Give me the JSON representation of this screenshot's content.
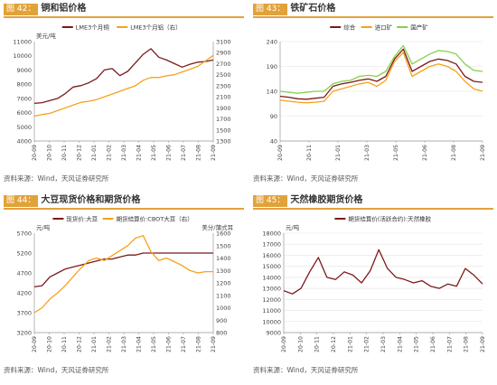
{
  "panels": [
    {
      "tag": "图 42：",
      "title": "铜和铝价格",
      "source": "资料来源：Wind，天风证券研究所"
    },
    {
      "tag": "图 43：",
      "title": "铁矿石价格",
      "source": "资料来源：Wind，天风证券研究所"
    },
    {
      "tag": "图 44：",
      "title": "大豆现货价格和期货价格",
      "source": "资料来源：Wind，天风证券研究所"
    },
    {
      "tag": "图 45：",
      "title": "天然橡胶期货价格",
      "source": "资料来源：Wind，天风证券研究所"
    }
  ],
  "colors": {
    "dark_red": "#7b1a1a",
    "orange": "#f7a11a",
    "green": "#86d04c",
    "accent": "#e2a23a"
  },
  "chart_data": [
    {
      "type": "line",
      "ylabel_left": "美元/吨",
      "ylim": [
        4000,
        11000
      ],
      "yticks": [
        4000,
        5000,
        6000,
        7000,
        8000,
        9000,
        10000,
        11000
      ],
      "y2lim": [
        1300,
        3100
      ],
      "y2ticks": [
        1300,
        1500,
        1700,
        1900,
        2100,
        2300,
        2500,
        2700,
        2900,
        3100
      ],
      "xticks": [
        "20-09",
        "20-10",
        "20-11",
        "20-12",
        "21-01",
        "21-02",
        "21-03",
        "21-04",
        "21-05",
        "21-06",
        "21-07",
        "21-08",
        "21-09"
      ],
      "legend": "top-center",
      "series": [
        {
          "name": "LME3个月铜",
          "axis": "left",
          "color": "#7b1a1a",
          "values": [
            6650,
            6700,
            6850,
            7000,
            7350,
            7800,
            7900,
            8100,
            8400,
            9000,
            9100,
            8600,
            8900,
            9500,
            10100,
            10500,
            9900,
            9700,
            9450,
            9200,
            9400,
            9550,
            9600,
            9700
          ]
        },
        {
          "name": "LME3个月铝（右）",
          "axis": "right",
          "color": "#f7a11a",
          "values": [
            1750,
            1780,
            1800,
            1850,
            1900,
            1950,
            2000,
            2020,
            2050,
            2100,
            2150,
            2200,
            2250,
            2300,
            2400,
            2450,
            2450,
            2480,
            2500,
            2550,
            2600,
            2650,
            2750,
            2850
          ]
        }
      ]
    },
    {
      "type": "line",
      "ylim": [
        40,
        240
      ],
      "yticks": [
        40,
        90,
        140,
        190,
        240
      ],
      "xticks": [
        "20-09",
        "20-11",
        "21-01",
        "21-03",
        "21-05",
        "21-06",
        "21-08",
        "21-09"
      ],
      "legend": "top-center",
      "series": [
        {
          "name": "综合",
          "color": "#7b1a1a",
          "values": [
            130,
            128,
            125,
            124,
            126,
            128,
            150,
            155,
            158,
            162,
            165,
            160,
            170,
            205,
            225,
            180,
            190,
            200,
            205,
            202,
            195,
            170,
            160,
            158
          ]
        },
        {
          "name": "进口矿",
          "color": "#f7a11a",
          "values": [
            122,
            120,
            118,
            117,
            118,
            120,
            140,
            145,
            150,
            155,
            158,
            150,
            162,
            200,
            218,
            170,
            180,
            190,
            195,
            190,
            180,
            160,
            145,
            140
          ]
        },
        {
          "name": "国产矿",
          "color": "#86d04c",
          "values": [
            140,
            138,
            136,
            138,
            140,
            140,
            155,
            160,
            162,
            170,
            172,
            170,
            180,
            210,
            232,
            195,
            205,
            215,
            222,
            220,
            215,
            195,
            182,
            180
          ]
        }
      ]
    },
    {
      "type": "line",
      "ylabel_left": "元/吨",
      "ylabel_right": "美分/蒲式耳",
      "ylim": [
        3200,
        5700
      ],
      "yticks": [
        3200,
        3700,
        4200,
        4700,
        5200,
        5700
      ],
      "y2lim": [
        800,
        1600
      ],
      "y2ticks": [
        800,
        900,
        1000,
        1100,
        1200,
        1300,
        1400,
        1500,
        1600
      ],
      "xticks": [
        "20-09",
        "20-10",
        "20-11",
        "20-12",
        "21-01",
        "21-02",
        "21-03",
        "21-04",
        "21-05",
        "21-06",
        "21-07",
        "21-08",
        "21-09"
      ],
      "legend": "top-center",
      "series": [
        {
          "name": "现货价:大豆",
          "axis": "left",
          "color": "#7b1a1a",
          "values": [
            4350,
            4380,
            4600,
            4700,
            4800,
            4850,
            4900,
            4950,
            5000,
            5050,
            5050,
            5100,
            5150,
            5150,
            5200,
            5200,
            5200,
            5200,
            5200,
            5200,
            5200,
            5200,
            5200,
            5200
          ]
        },
        {
          "name": "期货结算价:CBOT大豆（右）",
          "axis": "right",
          "color": "#f7a11a",
          "values": [
            960,
            1000,
            1070,
            1120,
            1180,
            1250,
            1320,
            1380,
            1400,
            1380,
            1420,
            1460,
            1500,
            1560,
            1580,
            1450,
            1380,
            1400,
            1370,
            1340,
            1300,
            1280,
            1290,
            1290
          ]
        }
      ]
    },
    {
      "type": "line",
      "ylabel_left": "元/吨",
      "ylim": [
        9000,
        18000
      ],
      "yticks": [
        9000,
        10000,
        11000,
        12000,
        13000,
        14000,
        15000,
        16000,
        17000,
        18000
      ],
      "xticks": [
        "20-09",
        "20-10",
        "20-11",
        "20-12",
        "21-01",
        "21-02",
        "21-03",
        "21-04",
        "21-05",
        "21-06",
        "21-07",
        "21-08",
        "21-09"
      ],
      "legend": "top-center",
      "series": [
        {
          "name": "期货结算价(活跃合约):天然橡胶",
          "color": "#7b1a1a",
          "values": [
            12800,
            12500,
            13000,
            14500,
            15800,
            14000,
            13800,
            14500,
            14200,
            13500,
            14600,
            16500,
            14800,
            14000,
            13800,
            13500,
            13700,
            13200,
            13000,
            13400,
            13200,
            14800,
            14200,
            13400
          ]
        }
      ]
    }
  ]
}
